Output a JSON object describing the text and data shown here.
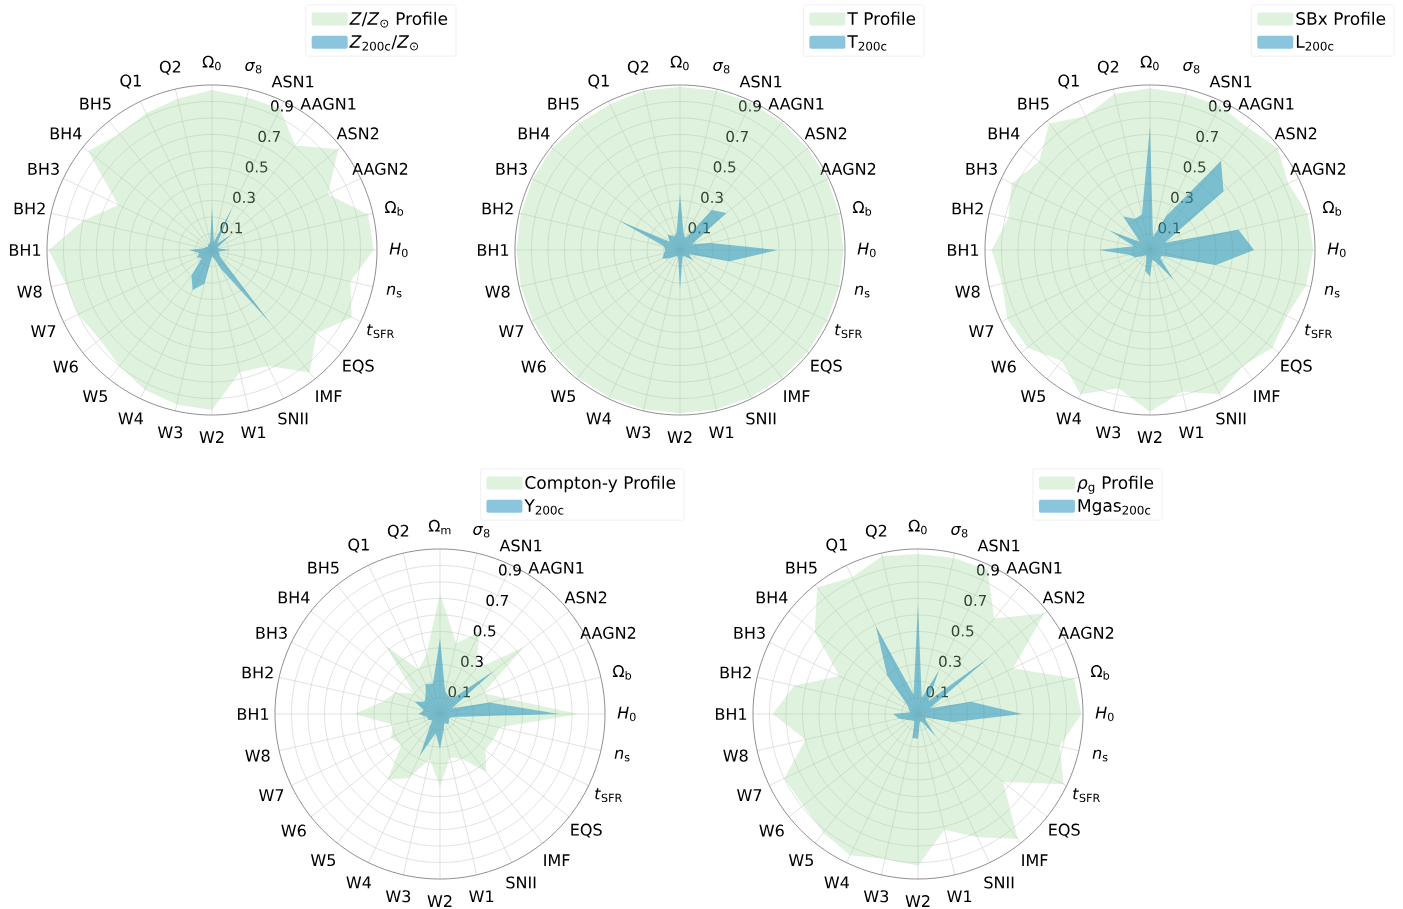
{
  "chart_data": [
    {
      "type": "radar",
      "categories": [
        "Ω$_{0}$",
        "*σ*$_{8}$",
        "ASN1",
        "AAGN1",
        "ASN2",
        "AAGN2",
        "Ω$_{b}$",
        "*H*$_{0}$",
        "*n*$_{s}$",
        "*t*$_{SFR}$",
        "EQS",
        "IMF",
        "SNII",
        "W1",
        "W2",
        "W3",
        "W4",
        "W5",
        "W6",
        "W7",
        "W8",
        "BH1",
        "BH2",
        "BH3",
        "BH4",
        "BH5",
        "Q1",
        "Q2"
      ],
      "series": [
        {
          "name": "*Z*/*Z*$_{⊙}$ Profile",
          "color": "#99d699",
          "values": [
            0.97,
            0.95,
            0.95,
            0.81,
            0.98,
            0.78,
            0.97,
            0.98,
            0.86,
            0.94,
            0.81,
            0.95,
            0.78,
            0.76,
            0.97,
            0.96,
            0.94,
            0.9,
            0.87,
            0.9,
            0.91,
            0.99,
            0.8,
            0.63,
            0.96,
            0.9,
            0.92,
            0.94
          ]
        },
        {
          "name": "*Z*$_{200c}$/*Z*$_{⊙}$",
          "color": "#2a93c1",
          "values": [
            0.26,
            0.05,
            0.28,
            0.05,
            0.15,
            0.04,
            0.04,
            0.11,
            0.04,
            0.05,
            0.06,
            0.56,
            0.13,
            0.05,
            0.04,
            0.21,
            0.27,
            0.2,
            0.08,
            0.1,
            0.08,
            0.14,
            0.05,
            0.04,
            0.03,
            0.04,
            0.04,
            0.05
          ]
        }
      ],
      "ylim": [
        0,
        1
      ],
      "yticks": [
        0.1,
        0.3,
        0.5,
        0.7,
        0.9
      ],
      "grid": true,
      "legend": "top right"
    },
    {
      "type": "radar",
      "categories": [
        "Ω$_{0}$",
        "*σ*$_{8}$",
        "ASN1",
        "AAGN1",
        "ASN2",
        "AAGN2",
        "Ω$_{b}$",
        "*H*$_{0}$",
        "*n*$_{s}$",
        "*t*$_{SFR}$",
        "EQS",
        "IMF",
        "SNII",
        "W1",
        "W2",
        "W3",
        "W4",
        "W5",
        "W6",
        "W7",
        "W8",
        "BH1",
        "BH2",
        "BH3",
        "BH4",
        "BH5",
        "Q1",
        "Q2"
      ],
      "series": [
        {
          "name": "T Profile",
          "color": "#99d699",
          "values": [
            0.99,
            0.99,
            0.99,
            0.99,
            0.99,
            0.99,
            0.99,
            0.99,
            0.99,
            0.99,
            0.99,
            0.99,
            0.99,
            0.99,
            0.99,
            0.99,
            0.99,
            0.99,
            0.99,
            0.99,
            0.99,
            0.99,
            0.99,
            0.99,
            0.99,
            0.98,
            0.98,
            0.99
          ]
        },
        {
          "name": "T$_{200c}$",
          "color": "#2a93c1",
          "values": [
            0.34,
            0.1,
            0.08,
            0.31,
            0.36,
            0.08,
            0.19,
            0.59,
            0.31,
            0.06,
            0.1,
            0.05,
            0.04,
            0.06,
            0.24,
            0.05,
            0.04,
            0.05,
            0.08,
            0.12,
            0.1,
            0.09,
            0.1,
            0.41,
            0.08,
            0.12,
            0.09,
            0.1
          ]
        }
      ],
      "ylim": [
        0,
        1
      ],
      "yticks": [
        0.1,
        0.3,
        0.5,
        0.7,
        0.9
      ],
      "grid": true,
      "legend": "top right"
    },
    {
      "type": "radar",
      "categories": [
        "Ω$_{0}$",
        "*σ*$_{8}$",
        "ASN1",
        "AAGN1",
        "ASN2",
        "AAGN2",
        "Ω$_{b}$",
        "*H*$_{0}$",
        "*n*$_{s}$",
        "*t*$_{SFR}$",
        "EQS",
        "IMF",
        "SNII",
        "W1",
        "W2",
        "W3",
        "W4",
        "W5",
        "W6",
        "W7",
        "W8",
        "BH1",
        "BH2",
        "BH3",
        "BH4",
        "BH5",
        "Q1",
        "Q2"
      ],
      "series": [
        {
          "name": "SBx Profile",
          "color": "#99d699",
          "values": [
            0.98,
            0.97,
            0.97,
            0.95,
            0.99,
            0.93,
            0.98,
            0.99,
            0.97,
            0.92,
            0.95,
            0.9,
            0.97,
            0.88,
            0.98,
            0.86,
            0.97,
            0.86,
            0.95,
            0.96,
            0.92,
            0.96,
            0.88,
            0.93,
            0.86,
            0.98,
            0.9,
            0.97
          ]
        },
        {
          "name": "L$_{200c}$",
          "color": "#2a93c1",
          "values": [
            0.75,
            0.08,
            0.23,
            0.69,
            0.57,
            0.1,
            0.55,
            0.63,
            0.41,
            0.08,
            0.08,
            0.23,
            0.08,
            0.06,
            0.16,
            0.13,
            0.05,
            0.04,
            0.06,
            0.1,
            0.13,
            0.31,
            0.1,
            0.27,
            0.08,
            0.26,
            0.21,
            0.22
          ]
        }
      ],
      "ylim": [
        0,
        1
      ],
      "yticks": [
        0.1,
        0.3,
        0.5,
        0.7,
        0.9
      ],
      "grid": true,
      "legend": "top right"
    },
    {
      "type": "radar",
      "categories": [
        "Ω$_{m}$",
        "*σ*$_{8}$",
        "ASN1",
        "AAGN1",
        "ASN2",
        "AAGN2",
        "Ω$_{b}$",
        "*H*$_{0}$",
        "*n*$_{s}$",
        "*t*$_{SFR}$",
        "EQS",
        "IMF",
        "SNII",
        "W1",
        "W2",
        "W3",
        "W4",
        "W5",
        "W6",
        "W7",
        "W8",
        "BH1",
        "BH2",
        "BH3",
        "BH4",
        "BH5",
        "Q1",
        "Q2"
      ],
      "series": [
        {
          "name": "Compton-y Profile",
          "color": "#99d699",
          "values": [
            0.73,
            0.44,
            0.55,
            0.35,
            0.65,
            0.29,
            0.42,
            0.84,
            0.37,
            0.36,
            0.35,
            0.45,
            0.3,
            0.27,
            0.44,
            0.28,
            0.43,
            0.51,
            0.3,
            0.33,
            0.29,
            0.52,
            0.35,
            0.3,
            0.2,
            0.53,
            0.3,
            0.37
          ]
        },
        {
          "name": "Y$_{200c}$",
          "color": "#2a93c1",
          "values": [
            0.46,
            0.14,
            0.12,
            0.12,
            0.42,
            0.08,
            0.31,
            0.72,
            0.08,
            0.06,
            0.07,
            0.08,
            0.06,
            0.1,
            0.21,
            0.12,
            0.28,
            0.1,
            0.06,
            0.08,
            0.08,
            0.13,
            0.1,
            0.17,
            0.12,
            0.14,
            0.2,
            0.19
          ]
        }
      ],
      "ylim": [
        0,
        1
      ],
      "yticks": [
        0.1,
        0.3,
        0.5,
        0.7,
        0.9
      ],
      "grid": true,
      "legend": "top right"
    },
    {
      "type": "radar",
      "categories": [
        "Ω$_{0}$",
        "*σ*$_{8}$",
        "ASN1",
        "AAGN1",
        "ASN2",
        "AAGN2",
        "Ω$_{b}$",
        "*H*$_{0}$",
        "*n*$_{s}$",
        "*t*$_{SFR}$",
        "EQS",
        "IMF",
        "SNII",
        "W1",
        "W2",
        "W3",
        "W4",
        "W5",
        "W6",
        "W7",
        "W8",
        "BH1",
        "BH2",
        "BH3",
        "BH4",
        "BH5",
        "Q1",
        "Q2"
      ],
      "series": [
        {
          "name": "*ρ*$_{g}$ Profile",
          "color": "#99d699",
          "values": [
            0.97,
            0.97,
            0.97,
            0.74,
            0.98,
            0.64,
            0.97,
            0.99,
            0.88,
            0.98,
            0.66,
            0.97,
            0.83,
            0.72,
            0.92,
            0.9,
            0.95,
            0.92,
            0.89,
            0.9,
            0.7,
            0.88,
            0.77,
            0.53,
            0.8,
            0.98,
            0.92,
            0.98
          ]
        },
        {
          "name": "Mgas$_{200c}$",
          "color": "#2a93c1",
          "values": [
            0.67,
            0.1,
            0.29,
            0.1,
            0.55,
            0.08,
            0.33,
            0.63,
            0.22,
            0.05,
            0.06,
            0.17,
            0.05,
            0.05,
            0.15,
            0.15,
            0.05,
            0.05,
            0.06,
            0.08,
            0.12,
            0.15,
            0.05,
            0.06,
            0.08,
            0.3,
            0.59,
            0.12
          ]
        }
      ],
      "ylim": [
        0,
        1
      ],
      "yticks": [
        0.1,
        0.3,
        0.5,
        0.7,
        0.9
      ],
      "grid": true,
      "legend": "top right"
    }
  ]
}
